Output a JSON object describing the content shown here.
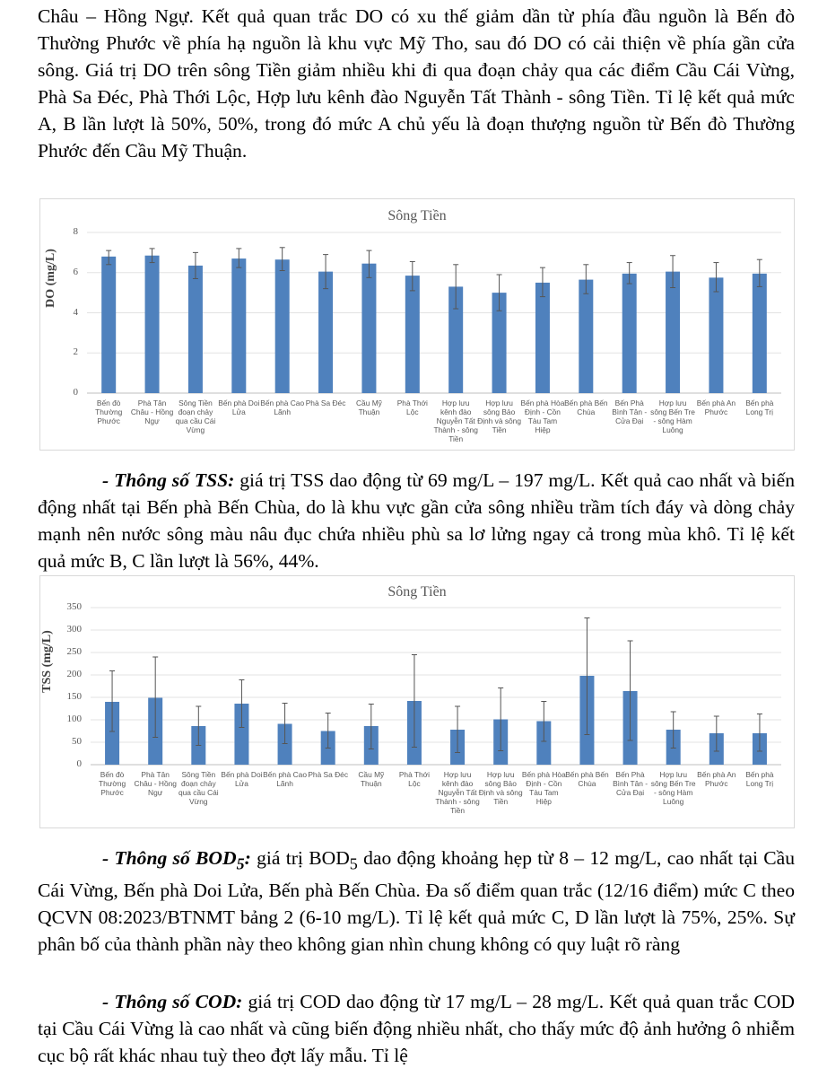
{
  "paragraphs": {
    "p1": "Châu – Hồng Ngự. Kết quả quan trắc DO có xu thế giảm dần từ phía đầu nguồn là Bến đò Thường Phước về phía hạ nguồn là khu vực Mỹ Tho, sau đó DO có cải thiện về phía gần cửa sông. Giá trị DO trên sông Tiền giảm nhiều khi đi qua đoạn chảy qua các điểm Cầu Cái Vừng, Phà Sa Đéc, Phà Thới Lộc, Hợp lưu kênh đào Nguyễn Tất Thành - sông Tiền. Tỉ lệ kết quả mức A, B lần lượt là 50%, 50%, trong đó mức A chủ yếu là đoạn thượng nguồn từ Bến đò Thường Phước đến Cầu Mỹ Thuận.",
    "p2_label": "- Thông số TSS:",
    "p2": " giá trị TSS dao động từ 69 mg/L – 197 mg/L. Kết quả cao nhất và biến động nhất tại Bến phà Bến Chùa, do là khu vực gần cửa sông nhiều trầm tích đáy và dòng chảy mạnh nên nước sông màu nâu đục chứa nhiều phù sa lơ lửng ngay cả trong mùa khô. Tỉ lệ kết quả mức B, C lần lượt là 56%, 44%.",
    "p3_label": "- Thông số BOD",
    "p3_label_sub": "5",
    "p3_label_end": ":",
    "p3_a": " giá trị BOD",
    "p3_sub": "5",
    "p3_b": " dao động khoảng hẹp từ 8 – 12 mg/L, cao nhất tại Cầu Cái Vừng, Bến phà Doi Lửa, Bến phà Bến Chùa. Đa số điểm quan trắc (12/16 điểm) mức C theo QCVN 08:2023/BTNMT bảng 2 (6-10 mg/L). Tỉ lệ kết quả mức C, D lần lượt là 75%, 25%. Sự phân bố của thành phần này theo không gian nhìn chung không có quy luật rõ ràng",
    "p4_label": "- Thông số COD:",
    "p4": " giá trị COD dao động từ 17 mg/L – 28 mg/L. Kết quả quan trắc COD tại Cầu Cái Vừng là cao nhất và cũng biến động nhiều nhất, cho thấy mức độ ảnh hưởng ô nhiễm cục bộ rất khác nhau tuỳ theo đợt lấy mẫu. Tỉ lệ"
  },
  "chart_data": [
    {
      "type": "bar",
      "title": "Sông Tiền",
      "ylabel": "DO  (mg/L)",
      "xlabel": "",
      "ylim": [
        0,
        8
      ],
      "yticks": [
        0,
        2,
        4,
        6,
        8
      ],
      "grid": true,
      "bar_color": "#4f81bd",
      "error_bars": true,
      "categories": [
        "Bến đò Thường Phước",
        "Phà Tân Châu - Hồng Ngự",
        "Sông Tiền đoạn chảy qua cầu Cái Vừng",
        "Bến phà Doi Lửa",
        "Bến phà Cao Lãnh",
        "Phà Sa Đéc",
        "Cầu Mỹ Thuận",
        "Phà Thới Lộc",
        "Hợp lưu kênh đào Nguyễn Tất Thành - sông Tiền",
        "Hợp lưu sông Bảo Định và sông Tiền",
        "Bến phà Hòa Định - Cồn Tàu Tam Hiệp",
        "Bến phà Bến Chùa",
        "Bến Phà Bình Tân - Cửa Đại",
        "Hợp lưu sông Bến Tre - sông Hàm Luông",
        "Bến phà An Phước",
        "Bến phà Long Trị"
      ],
      "values": [
        6.8,
        6.85,
        6.35,
        6.7,
        6.65,
        6.05,
        6.45,
        5.85,
        5.3,
        5.0,
        5.5,
        5.65,
        5.95,
        6.05,
        5.75,
        5.95
      ],
      "error_low": [
        6.4,
        6.5,
        5.7,
        6.25,
        6.1,
        5.2,
        5.75,
        5.1,
        4.2,
        4.1,
        4.8,
        4.95,
        5.45,
        5.25,
        5.05,
        5.3
      ],
      "error_high": [
        7.1,
        7.2,
        7.0,
        7.2,
        7.25,
        6.9,
        7.1,
        6.55,
        6.4,
        5.9,
        6.25,
        6.4,
        6.5,
        6.85,
        6.5,
        6.65
      ]
    },
    {
      "type": "bar",
      "title": "Sông Tiền",
      "ylabel": "TSS  (mg/L)",
      "xlabel": "",
      "ylim": [
        0,
        350
      ],
      "yticks": [
        0,
        50,
        100,
        150,
        200,
        250,
        300,
        350
      ],
      "grid": true,
      "bar_color": "#4f81bd",
      "error_bars": true,
      "categories": [
        "Bến đò Thường Phước",
        "Phà Tân Châu - Hồng Ngự",
        "Sông Tiền đoạn chảy qua cầu Cái Vừng",
        "Bến phà Doi Lửa",
        "Bến phà Cao Lãnh",
        "Phà Sa Đéc",
        "Cầu Mỹ Thuận",
        "Phà Thới Lộc",
        "Hợp lưu kênh đào Nguyễn Tất Thành - sông Tiền",
        "Hợp lưu sông Bảo Định và sông Tiền",
        "Bến phà Hòa Định - Cồn Tàu Tam Hiệp",
        "Bến phà Bến Chùa",
        "Bến Phà Bình Tân - Cửa Đại",
        "Hợp lưu sông Bến Tre - sông Hàm Luông",
        "Bến phà An Phước",
        "Bến phà Long Trị"
      ],
      "values": [
        140,
        149,
        86,
        136,
        91,
        75,
        86,
        142,
        78,
        101,
        97,
        198,
        164,
        78,
        70,
        70
      ],
      "error_low": [
        74,
        61,
        43,
        83,
        47,
        37,
        35,
        39,
        27,
        31,
        52,
        67,
        54,
        37,
        30,
        30
      ],
      "error_high": [
        209,
        240,
        130,
        189,
        137,
        115,
        135,
        245,
        130,
        171,
        141,
        327,
        276,
        118,
        108,
        113
      ]
    }
  ]
}
